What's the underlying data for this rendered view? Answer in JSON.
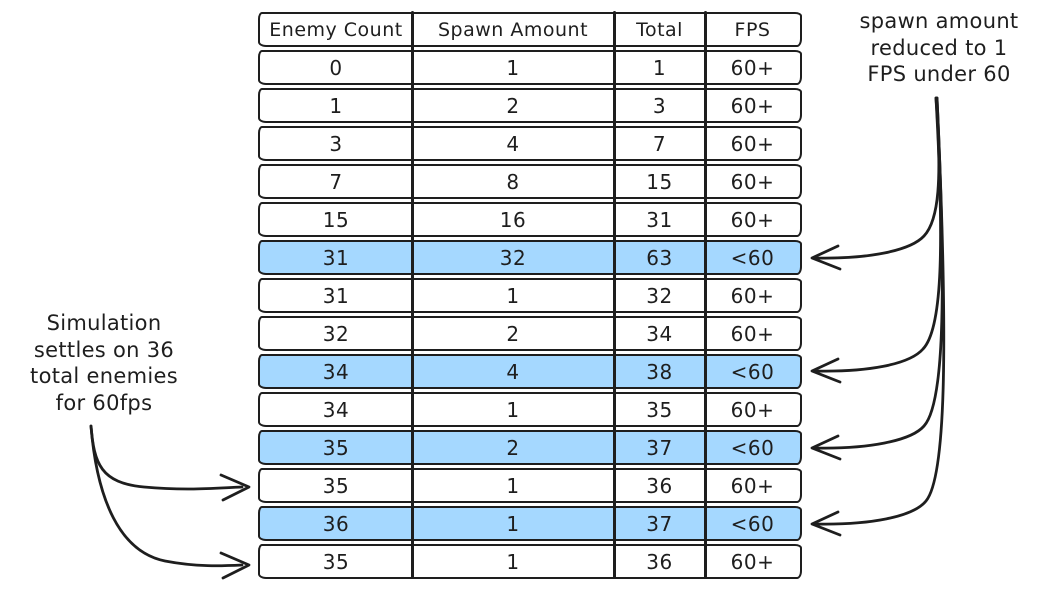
{
  "colors": {
    "ink": "#1e1e1e",
    "highlight": "#a5d8ff",
    "background": "#ffffff"
  },
  "table": {
    "columns": [
      "Enemy Count",
      "Spawn Amount",
      "Total",
      "FPS"
    ],
    "rows": [
      {
        "cells": [
          "0",
          "1",
          "1",
          "60+"
        ],
        "highlighted": false
      },
      {
        "cells": [
          "1",
          "2",
          "3",
          "60+"
        ],
        "highlighted": false
      },
      {
        "cells": [
          "3",
          "4",
          "7",
          "60+"
        ],
        "highlighted": false
      },
      {
        "cells": [
          "7",
          "8",
          "15",
          "60+"
        ],
        "highlighted": false
      },
      {
        "cells": [
          "15",
          "16",
          "31",
          "60+"
        ],
        "highlighted": false
      },
      {
        "cells": [
          "31",
          "32",
          "63",
          "<60"
        ],
        "highlighted": true
      },
      {
        "cells": [
          "31",
          "1",
          "32",
          "60+"
        ],
        "highlighted": false
      },
      {
        "cells": [
          "32",
          "2",
          "34",
          "60+"
        ],
        "highlighted": false
      },
      {
        "cells": [
          "34",
          "4",
          "38",
          "<60"
        ],
        "highlighted": true
      },
      {
        "cells": [
          "34",
          "1",
          "35",
          "60+"
        ],
        "highlighted": false
      },
      {
        "cells": [
          "35",
          "2",
          "37",
          "<60"
        ],
        "highlighted": true
      },
      {
        "cells": [
          "35",
          "1",
          "36",
          "60+"
        ],
        "highlighted": false
      },
      {
        "cells": [
          "36",
          "1",
          "37",
          "<60"
        ],
        "highlighted": true
      },
      {
        "cells": [
          "35",
          "1",
          "36",
          "60+"
        ],
        "highlighted": false
      }
    ]
  },
  "annotations": {
    "left": {
      "lines": [
        "Simulation",
        "settles on 36",
        "total enemies",
        "for 60fps"
      ]
    },
    "right": {
      "lines": [
        "spawn amount",
        "reduced to 1",
        "FPS under 60"
      ]
    }
  }
}
